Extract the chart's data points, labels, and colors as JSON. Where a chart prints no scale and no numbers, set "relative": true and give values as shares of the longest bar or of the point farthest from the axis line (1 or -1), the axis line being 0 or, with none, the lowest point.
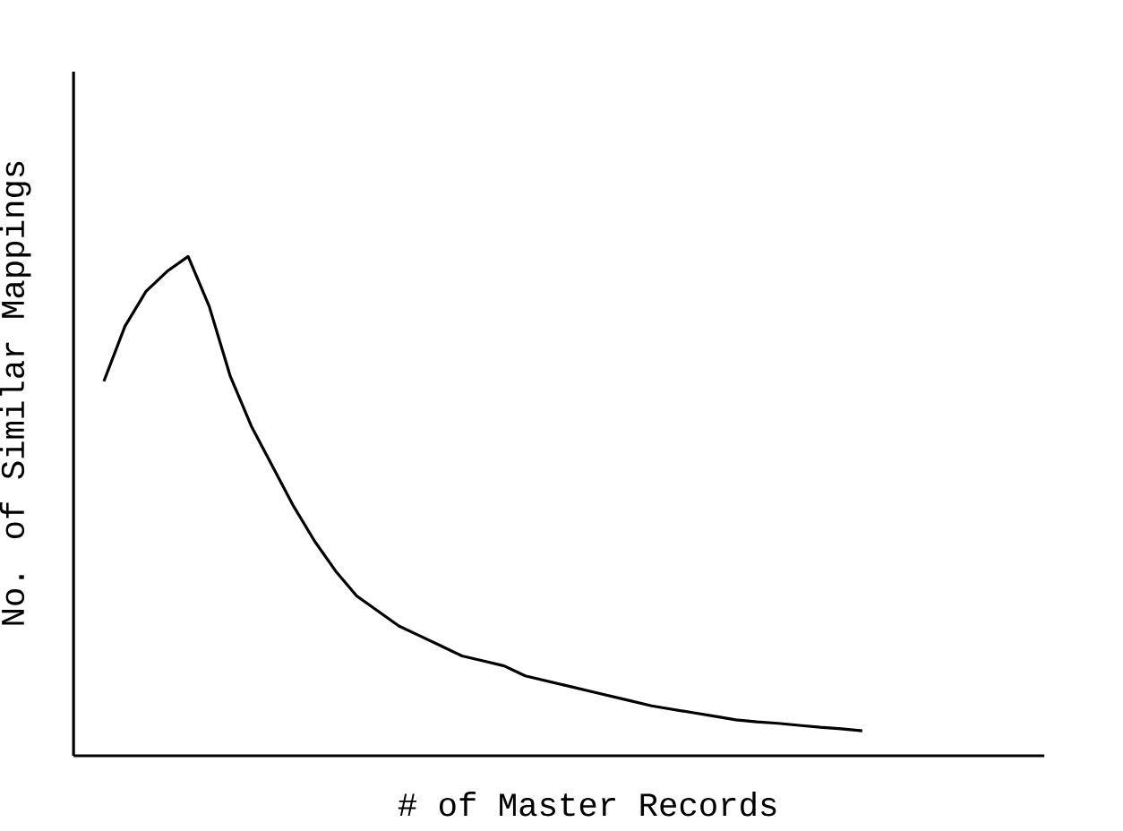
{
  "chart_data": {
    "type": "line",
    "relative": true,
    "xlabel": "# of Master Records",
    "ylabel": "No. of Similar Mappings",
    "color": "#000000",
    "categories": [
      null,
      null,
      null,
      null,
      null,
      null,
      null,
      null,
      null,
      null,
      null,
      null,
      null,
      null,
      null,
      null,
      null,
      null,
      null,
      null,
      null,
      null,
      null,
      null,
      null,
      null,
      null,
      null,
      null,
      null,
      null,
      null,
      null,
      null,
      null,
      null,
      null
    ],
    "values": [
      0.75,
      0.86,
      0.93,
      0.97,
      1,
      0.9,
      0.76,
      0.66,
      0.58,
      0.5,
      0.43,
      0.37,
      0.32,
      0.29,
      0.26,
      0.24,
      0.22,
      0.2,
      0.19,
      0.18,
      0.16,
      0.15,
      0.14,
      0.13,
      0.12,
      0.11,
      0.1,
      0.093,
      0.086,
      0.079,
      0.072,
      0.068,
      0.065,
      0.061,
      0.057,
      0.054,
      0.05
    ]
  }
}
